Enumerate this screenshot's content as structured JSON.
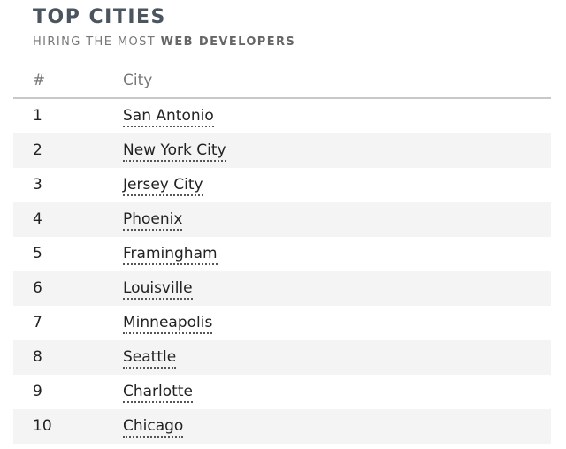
{
  "header": {
    "title": "TOP CITIES",
    "subtitle_prefix": "HIRING THE MOST ",
    "subtitle_bold": "WEB DEVELOPERS"
  },
  "table": {
    "columns": [
      "#",
      "City"
    ],
    "rows": [
      {
        "rank": "1",
        "city": "San Antonio"
      },
      {
        "rank": "2",
        "city": "New York City"
      },
      {
        "rank": "3",
        "city": "Jersey City"
      },
      {
        "rank": "4",
        "city": "Phoenix"
      },
      {
        "rank": "5",
        "city": "Framingham"
      },
      {
        "rank": "6",
        "city": "Louisville"
      },
      {
        "rank": "7",
        "city": "Minneapolis"
      },
      {
        "rank": "8",
        "city": "Seattle"
      },
      {
        "rank": "9",
        "city": "Charlotte"
      },
      {
        "rank": "10",
        "city": "Chicago"
      }
    ]
  },
  "colors": {
    "title": "#4a5560",
    "row_shade": "#f4f4f4",
    "header_rule": "#c8c8c8"
  }
}
